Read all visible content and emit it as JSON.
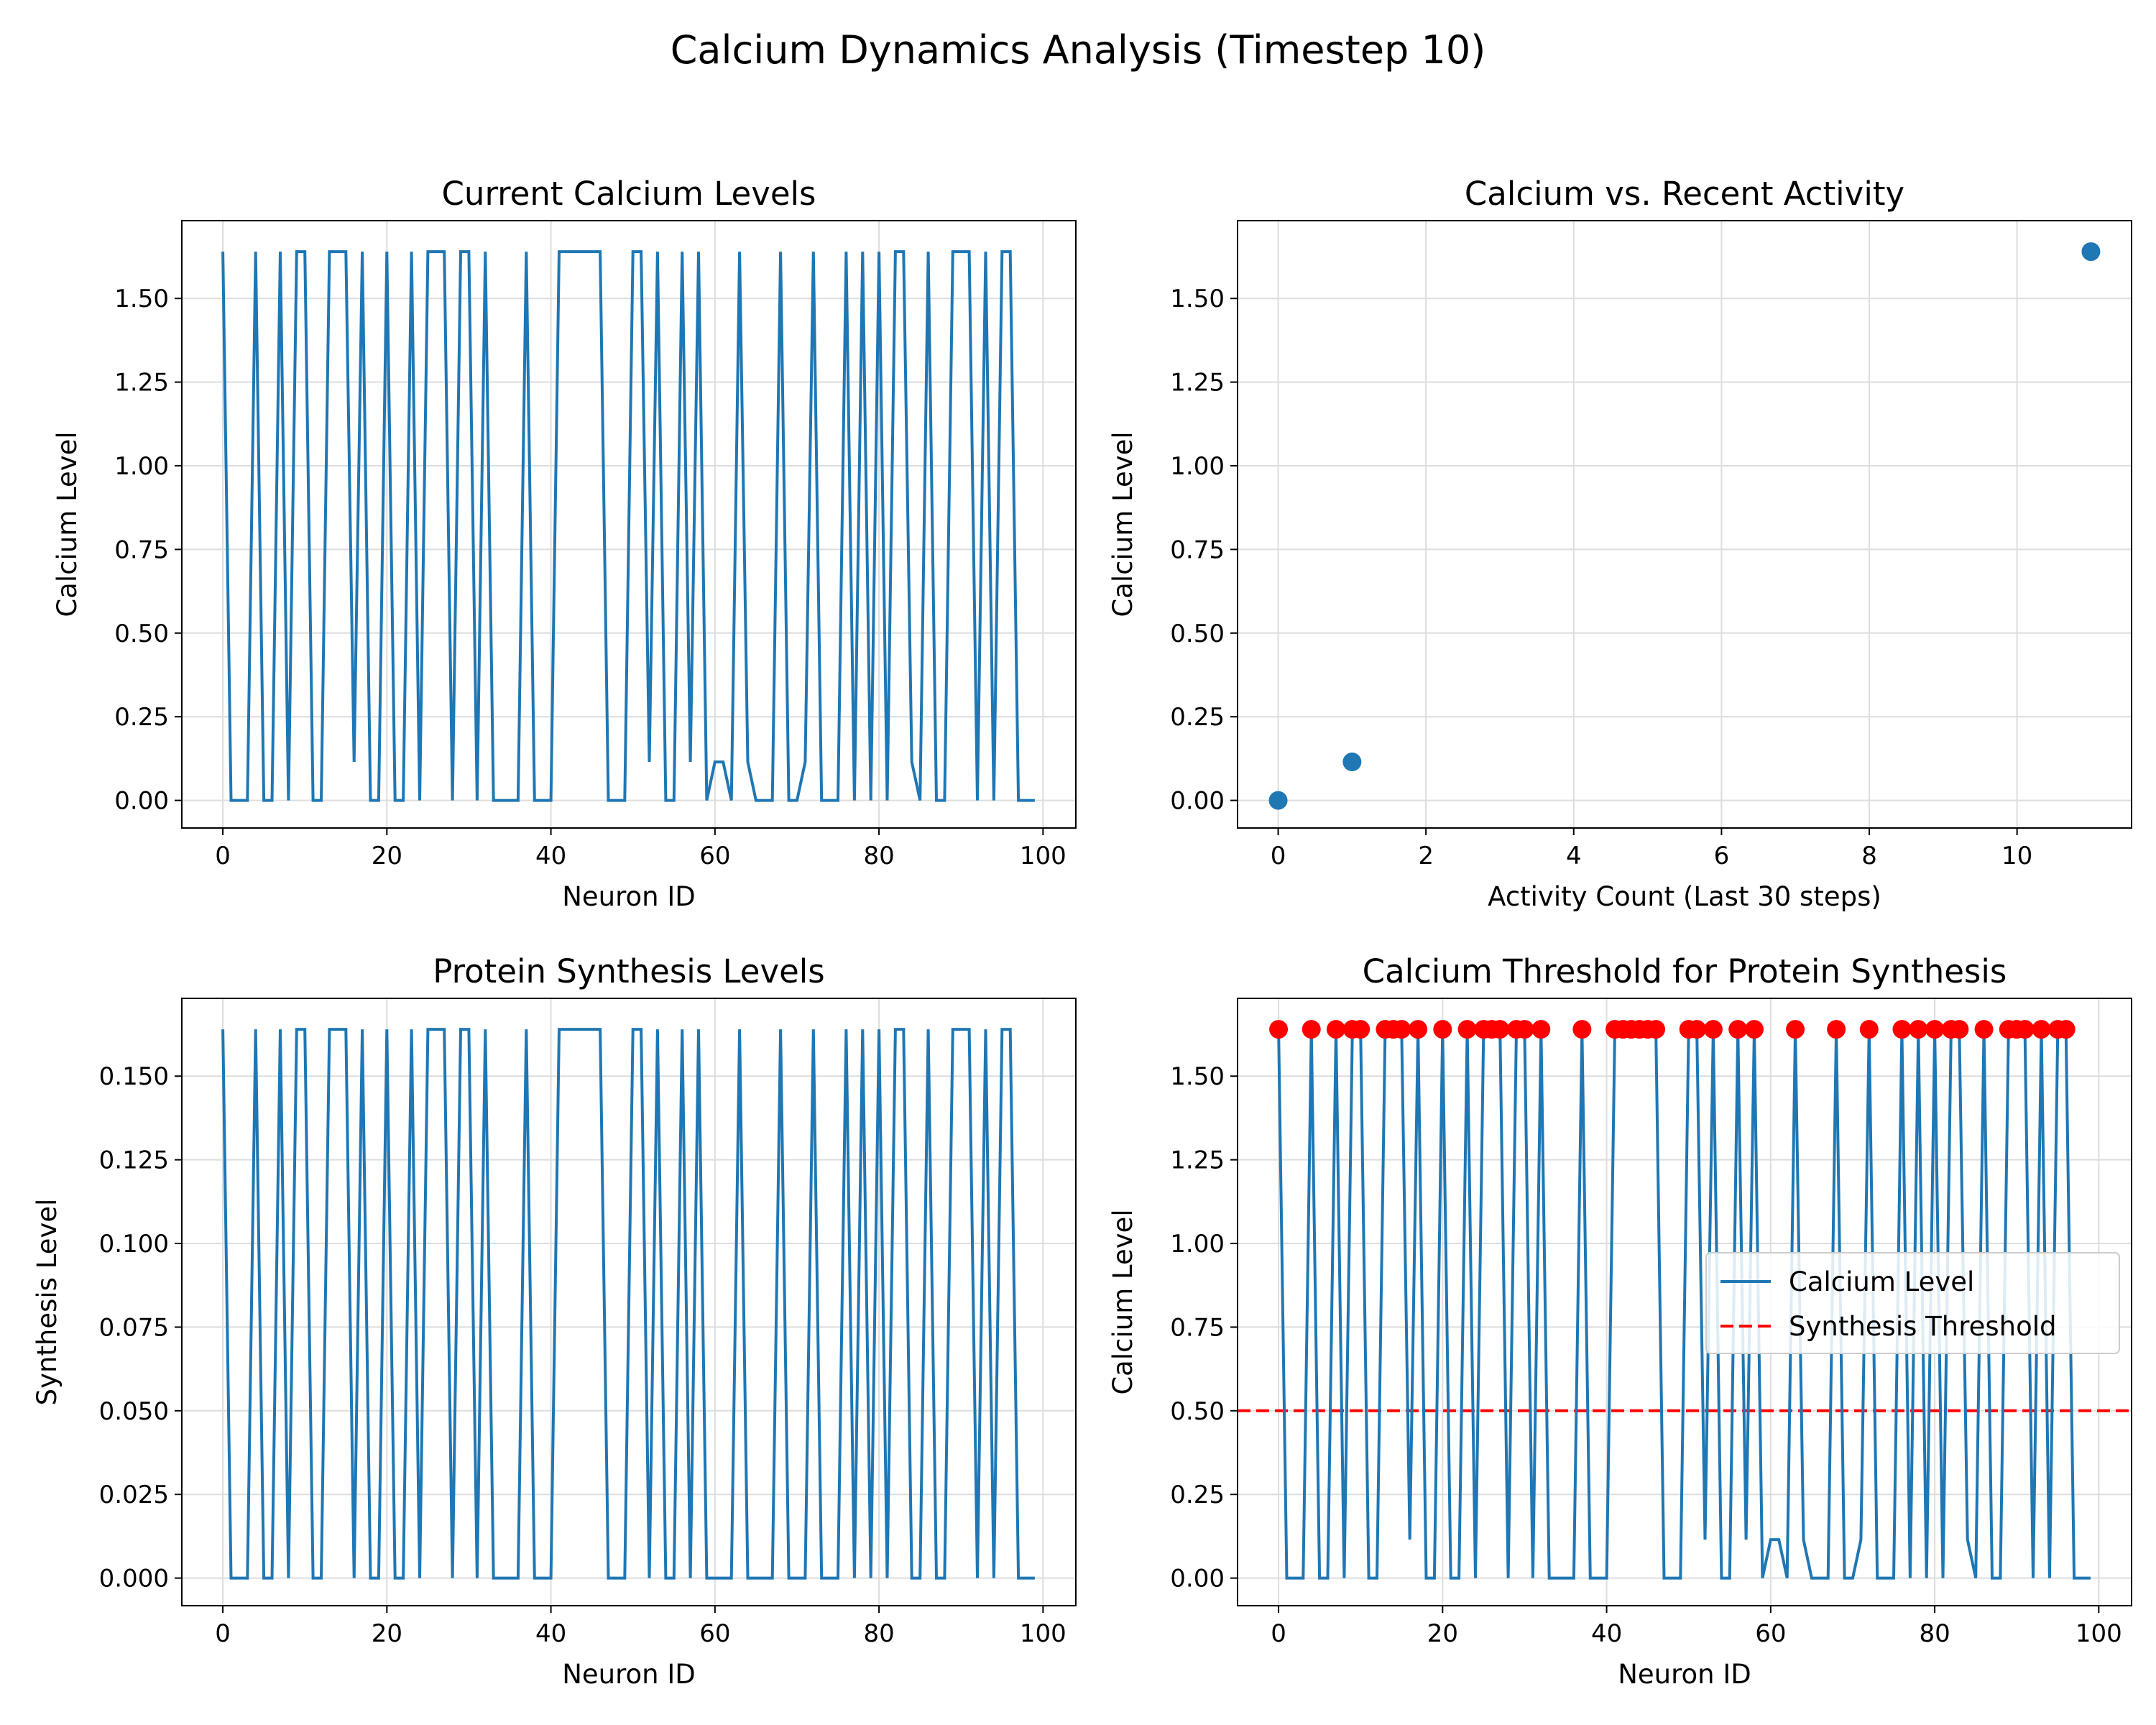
{
  "figure": {
    "suptitle": "Calcium Dynamics Analysis (Timestep 10)"
  },
  "colors": {
    "line": "#1f77b4",
    "threshold": "#ff0000",
    "markers": "#ff0000",
    "grid": "#dddddd",
    "axes": "#000000"
  },
  "chart_data": [
    {
      "id": "calcium",
      "type": "line",
      "title": "Current Calcium Levels",
      "xlabel": "Neuron ID",
      "ylabel": "Calcium Level",
      "xlim": [
        -5,
        104
      ],
      "ylim": [
        -0.0825,
        1.7325
      ],
      "xticks": [
        0,
        20,
        40,
        60,
        80,
        100
      ],
      "yticks": [
        0.0,
        0.25,
        0.5,
        0.75,
        1.0,
        1.25,
        1.5
      ],
      "ytick_labels": [
        "0.00",
        "0.25",
        "0.50",
        "0.75",
        "1.00",
        "1.25",
        "1.50"
      ],
      "grid": true,
      "x": [
        0,
        1,
        2,
        3,
        4,
        5,
        6,
        7,
        8,
        9,
        10,
        11,
        12,
        13,
        14,
        15,
        16,
        17,
        18,
        19,
        20,
        21,
        22,
        23,
        24,
        25,
        26,
        27,
        28,
        29,
        30,
        31,
        32,
        33,
        34,
        35,
        36,
        37,
        38,
        39,
        40,
        41,
        42,
        43,
        44,
        45,
        46,
        47,
        48,
        49,
        50,
        51,
        52,
        53,
        54,
        55,
        56,
        57,
        58,
        59,
        60,
        61,
        62,
        63,
        64,
        65,
        66,
        67,
        68,
        69,
        70,
        71,
        72,
        73,
        74,
        75,
        76,
        77,
        78,
        79,
        80,
        81,
        82,
        83,
        84,
        85,
        86,
        87,
        88,
        89,
        90,
        91,
        92,
        93,
        94,
        95,
        96,
        97,
        98,
        99
      ],
      "values": [
        1.64,
        0,
        0,
        0,
        1.64,
        0,
        0,
        1.64,
        0,
        1.64,
        1.64,
        0,
        0,
        1.64,
        1.64,
        1.64,
        0.115,
        1.64,
        0,
        0,
        1.64,
        0,
        0,
        1.64,
        0,
        1.64,
        1.64,
        1.64,
        0,
        1.64,
        1.64,
        0,
        1.64,
        0,
        0,
        0,
        0,
        1.64,
        0,
        0,
        0,
        1.64,
        1.64,
        1.64,
        1.64,
        1.64,
        1.64,
        0,
        0,
        0,
        1.64,
        1.64,
        0.115,
        1.64,
        0,
        0,
        1.64,
        0.115,
        1.64,
        0,
        0.115,
        0.115,
        0,
        1.64,
        0.115,
        0,
        0,
        0,
        1.64,
        0,
        0,
        0.115,
        1.64,
        0,
        0,
        0,
        1.64,
        0,
        1.64,
        0,
        1.64,
        0,
        1.64,
        1.64,
        0.115,
        0,
        1.64,
        0,
        0,
        1.64,
        1.64,
        1.64,
        0,
        1.64,
        0,
        1.64,
        1.64,
        0,
        0,
        0
      ]
    },
    {
      "id": "scatter",
      "type": "scatter",
      "title": "Calcium vs. Recent Activity",
      "xlabel": "Activity Count (Last 30 steps)",
      "ylabel": "Calcium Level",
      "xlim": [
        -0.55,
        11.55
      ],
      "ylim": [
        -0.0825,
        1.7325
      ],
      "xticks": [
        0,
        2,
        4,
        6,
        8,
        10
      ],
      "yticks": [
        0.0,
        0.25,
        0.5,
        0.75,
        1.0,
        1.25,
        1.5
      ],
      "ytick_labels": [
        "0.00",
        "0.25",
        "0.50",
        "0.75",
        "1.00",
        "1.25",
        "1.50"
      ],
      "grid": true,
      "points": [
        {
          "x": 0,
          "y": 0
        },
        {
          "x": 1,
          "y": 0.115
        },
        {
          "x": 11,
          "y": 1.64
        }
      ]
    },
    {
      "id": "synthesis",
      "type": "line",
      "title": "Protein Synthesis Levels",
      "xlabel": "Neuron ID",
      "ylabel": "Synthesis Level",
      "xlim": [
        -5,
        104
      ],
      "ylim": [
        -0.00825,
        0.17325
      ],
      "xticks": [
        0,
        20,
        40,
        60,
        80,
        100
      ],
      "yticks": [
        0.0,
        0.025,
        0.05,
        0.075,
        0.1,
        0.125,
        0.15
      ],
      "ytick_labels": [
        "0.000",
        "0.025",
        "0.050",
        "0.075",
        "0.100",
        "0.125",
        "0.150"
      ],
      "grid": true,
      "x": [
        0,
        1,
        2,
        3,
        4,
        5,
        6,
        7,
        8,
        9,
        10,
        11,
        12,
        13,
        14,
        15,
        16,
        17,
        18,
        19,
        20,
        21,
        22,
        23,
        24,
        25,
        26,
        27,
        28,
        29,
        30,
        31,
        32,
        33,
        34,
        35,
        36,
        37,
        38,
        39,
        40,
        41,
        42,
        43,
        44,
        45,
        46,
        47,
        48,
        49,
        50,
        51,
        52,
        53,
        54,
        55,
        56,
        57,
        58,
        59,
        60,
        61,
        62,
        63,
        64,
        65,
        66,
        67,
        68,
        69,
        70,
        71,
        72,
        73,
        74,
        75,
        76,
        77,
        78,
        79,
        80,
        81,
        82,
        83,
        84,
        85,
        86,
        87,
        88,
        89,
        90,
        91,
        92,
        93,
        94,
        95,
        96,
        97,
        98,
        99
      ],
      "values": [
        0.164,
        0,
        0,
        0,
        0.164,
        0,
        0,
        0.164,
        0,
        0.164,
        0.164,
        0,
        0,
        0.164,
        0.164,
        0.164,
        0,
        0.164,
        0,
        0,
        0.164,
        0,
        0,
        0.164,
        0,
        0.164,
        0.164,
        0.164,
        0,
        0.164,
        0.164,
        0,
        0.164,
        0,
        0,
        0,
        0,
        0.164,
        0,
        0,
        0,
        0.164,
        0.164,
        0.164,
        0.164,
        0.164,
        0.164,
        0,
        0,
        0,
        0.164,
        0.164,
        0,
        0.164,
        0,
        0,
        0.164,
        0,
        0.164,
        0,
        0,
        0,
        0,
        0.164,
        0,
        0,
        0,
        0,
        0.164,
        0,
        0,
        0,
        0.164,
        0,
        0,
        0,
        0.164,
        0,
        0.164,
        0,
        0.164,
        0,
        0.164,
        0.164,
        0,
        0,
        0.164,
        0,
        0,
        0.164,
        0.164,
        0.164,
        0,
        0.164,
        0,
        0.164,
        0.164,
        0,
        0,
        0
      ]
    },
    {
      "id": "threshold",
      "type": "line",
      "title": "Calcium Threshold for Protein Synthesis",
      "xlabel": "Neuron ID",
      "ylabel": "Calcium Level",
      "xlim": [
        -5,
        104
      ],
      "ylim": [
        -0.0825,
        1.7325
      ],
      "xticks": [
        0,
        20,
        40,
        60,
        80,
        100
      ],
      "yticks": [
        0.0,
        0.25,
        0.5,
        0.75,
        1.0,
        1.25,
        1.5
      ],
      "ytick_labels": [
        "0.00",
        "0.25",
        "0.50",
        "0.75",
        "1.00",
        "1.25",
        "1.50"
      ],
      "grid": true,
      "threshold": 0.5,
      "legend": {
        "placement": "center-right",
        "entries": [
          {
            "label": "Calcium Level",
            "style": "solid"
          },
          {
            "label": "Synthesis Threshold",
            "style": "dashed"
          }
        ]
      },
      "x": [
        0,
        1,
        2,
        3,
        4,
        5,
        6,
        7,
        8,
        9,
        10,
        11,
        12,
        13,
        14,
        15,
        16,
        17,
        18,
        19,
        20,
        21,
        22,
        23,
        24,
        25,
        26,
        27,
        28,
        29,
        30,
        31,
        32,
        33,
        34,
        35,
        36,
        37,
        38,
        39,
        40,
        41,
        42,
        43,
        44,
        45,
        46,
        47,
        48,
        49,
        50,
        51,
        52,
        53,
        54,
        55,
        56,
        57,
        58,
        59,
        60,
        61,
        62,
        63,
        64,
        65,
        66,
        67,
        68,
        69,
        70,
        71,
        72,
        73,
        74,
        75,
        76,
        77,
        78,
        79,
        80,
        81,
        82,
        83,
        84,
        85,
        86,
        87,
        88,
        89,
        90,
        91,
        92,
        93,
        94,
        95,
        96,
        97,
        98,
        99
      ],
      "values": [
        1.64,
        0,
        0,
        0,
        1.64,
        0,
        0,
        1.64,
        0,
        1.64,
        1.64,
        0,
        0,
        1.64,
        1.64,
        1.64,
        0.115,
        1.64,
        0,
        0,
        1.64,
        0,
        0,
        1.64,
        0,
        1.64,
        1.64,
        1.64,
        0,
        1.64,
        1.64,
        0,
        1.64,
        0,
        0,
        0,
        0,
        1.64,
        0,
        0,
        0,
        1.64,
        1.64,
        1.64,
        1.64,
        1.64,
        1.64,
        0,
        0,
        0,
        1.64,
        1.64,
        0.115,
        1.64,
        0,
        0,
        1.64,
        0.115,
        1.64,
        0,
        0.115,
        0.115,
        0,
        1.64,
        0.115,
        0,
        0,
        0,
        1.64,
        0,
        0,
        0.115,
        1.64,
        0,
        0,
        0,
        1.64,
        0,
        1.64,
        0,
        1.64,
        0,
        1.64,
        1.64,
        0.115,
        0,
        1.64,
        0,
        0,
        1.64,
        1.64,
        1.64,
        0,
        1.64,
        0,
        1.64,
        1.64,
        0,
        0,
        0
      ],
      "above_threshold_ids": [
        0,
        4,
        7,
        9,
        10,
        13,
        14,
        15,
        17,
        20,
        23,
        25,
        26,
        27,
        29,
        30,
        32,
        37,
        41,
        42,
        43,
        44,
        45,
        46,
        50,
        51,
        53,
        56,
        58,
        63,
        68,
        72,
        76,
        78,
        80,
        82,
        83,
        86,
        89,
        90,
        91,
        93,
        95,
        96
      ]
    }
  ]
}
